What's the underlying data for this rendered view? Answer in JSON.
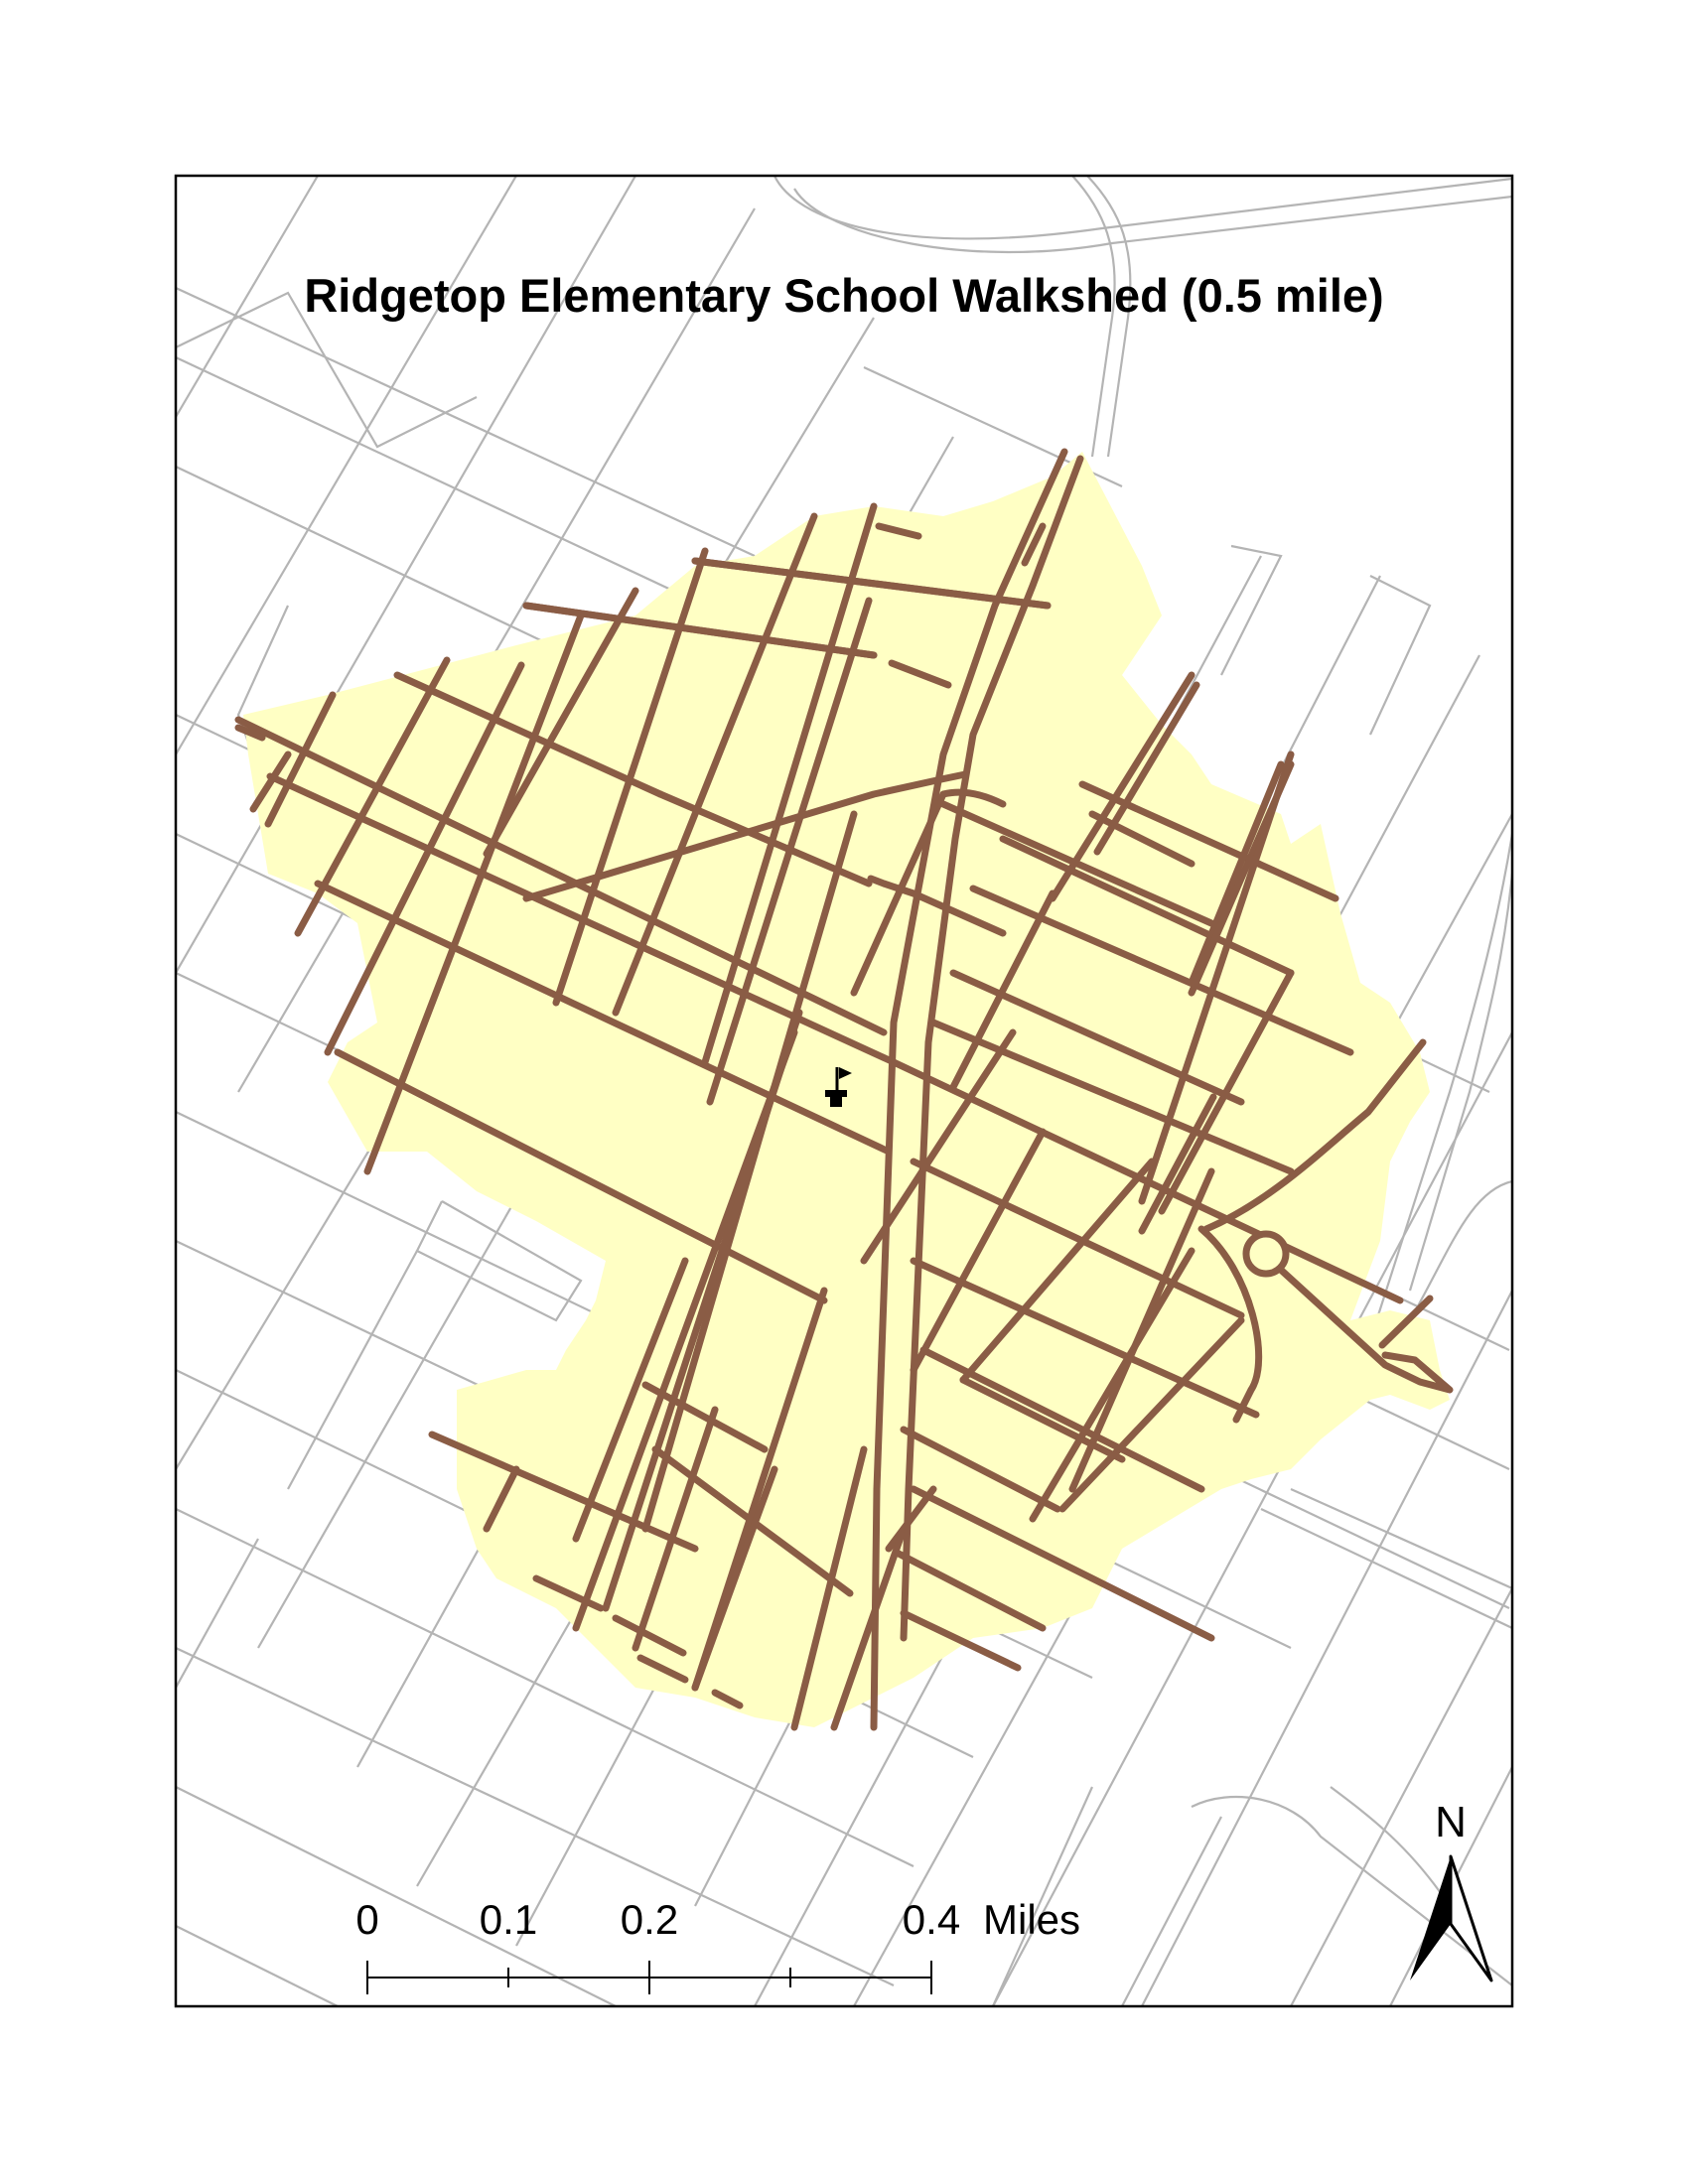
{
  "title": "Ridgetop Elementary School Walkshed (0.5 mile)",
  "scale_bar": {
    "labels": [
      "0",
      "0.1",
      "0.2",
      "0.4"
    ],
    "unit": "Miles"
  },
  "north_arrow": {
    "label": "N"
  },
  "colors": {
    "walkshed_fill": "#ffffc4",
    "walkshed_roads": "#8a5c45",
    "background_roads": "#b4b4b4",
    "frame": "#000000"
  },
  "icons": {
    "school": "school-flag-icon",
    "north": "north-arrow-icon"
  }
}
